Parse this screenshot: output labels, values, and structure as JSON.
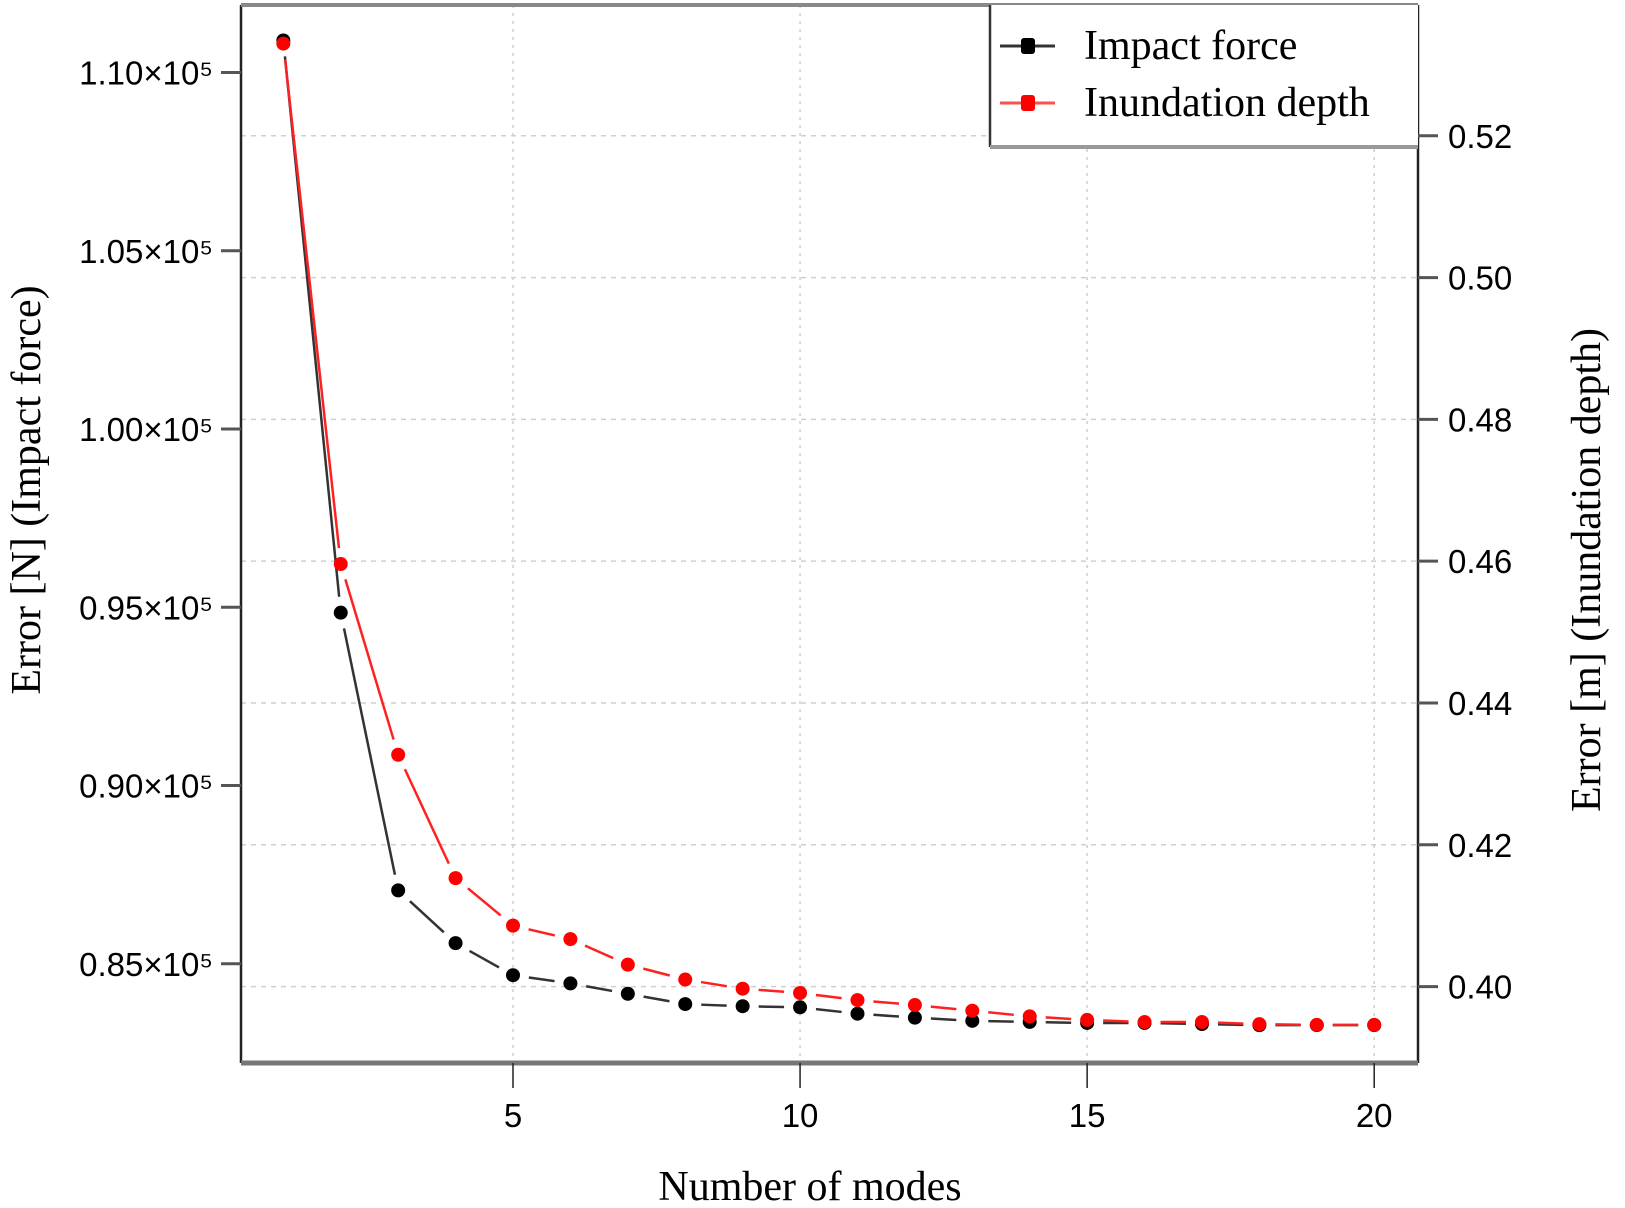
{
  "chart_data": {
    "type": "line",
    "title": "",
    "xlabel": "Number of modes",
    "ylabel_left": "Error [N] (Impact force)",
    "ylabel_right": "Error [m] (Inundation depth)",
    "x": [
      1,
      2,
      3,
      4,
      5,
      6,
      7,
      8,
      9,
      10,
      11,
      12,
      13,
      14,
      15,
      16,
      17,
      18,
      19,
      20
    ],
    "xlim": [
      0,
      20.8
    ],
    "x_ticks": [
      5,
      10,
      15,
      20
    ],
    "x_tick_labels": [
      "5",
      "10",
      "15",
      "20"
    ],
    "ylim_left": [
      82900.0,
      111800.0
    ],
    "y_ticks_left": [
      85000,
      90000,
      95000,
      100000,
      105000,
      110000
    ],
    "y_tick_labels_left": [
      "0.85×10⁵",
      "0.90×10⁵",
      "0.95×10⁵",
      "1.00×10⁵",
      "1.05×10⁵",
      "1.10×10⁵"
    ],
    "ylim_right": [
      0.3915,
      0.5335
    ],
    "y_ticks_right": [
      0.4,
      0.42,
      0.44,
      0.46,
      0.48,
      0.5,
      0.52
    ],
    "y_tick_labels_right": [
      "0.40",
      "0.42",
      "0.44",
      "0.46",
      "0.48",
      "0.50",
      "0.52"
    ],
    "grid": true,
    "legend_position": "top-right",
    "series": [
      {
        "name": "Impact force",
        "axis": "left",
        "color": "#000000",
        "values": [
          110900,
          94850,
          87060,
          85580,
          84680,
          84450,
          84160,
          83870,
          83810,
          83780,
          83600,
          83490,
          83400,
          83370,
          83340,
          83340,
          83310,
          83280,
          83280,
          83280
        ]
      },
      {
        "name": "Inundation depth",
        "axis": "right",
        "color": "#ff0000",
        "values": [
          0.533,
          0.4596,
          0.4327,
          0.4153,
          0.4086,
          0.4067,
          0.4031,
          0.401,
          0.3997,
          0.3991,
          0.3981,
          0.3974,
          0.3966,
          0.3958,
          0.3953,
          0.395,
          0.395,
          0.3947,
          0.3946,
          0.3946
        ]
      }
    ]
  }
}
